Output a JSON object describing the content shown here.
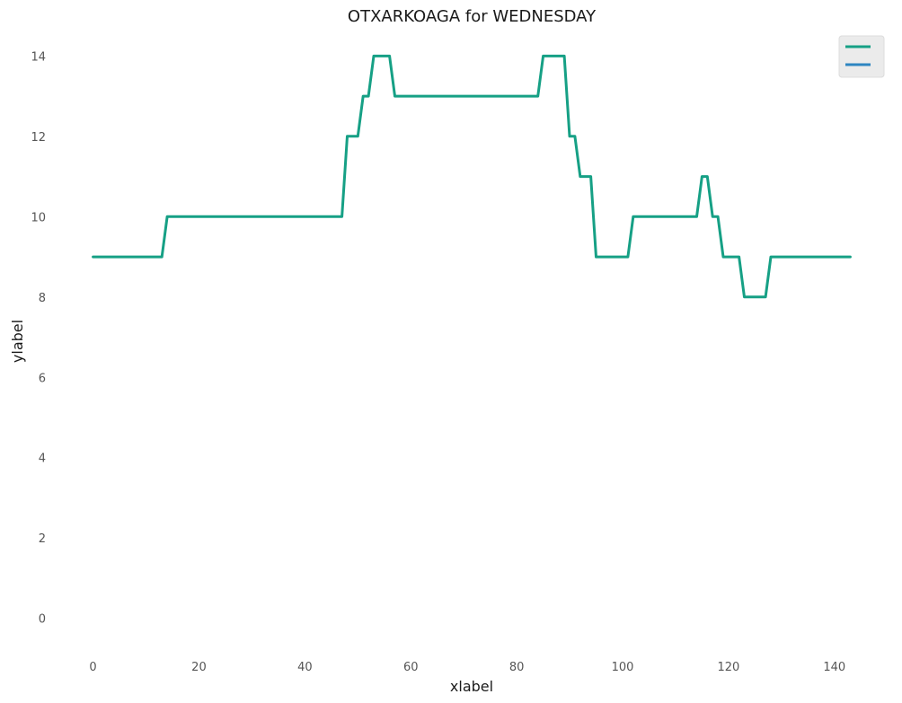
{
  "chart_data": {
    "type": "line",
    "title": "OTXARKOAGA for WEDNESDAY",
    "xlabel": "xlabel",
    "ylabel": "ylabel",
    "xlim": [
      -4,
      147
    ],
    "ylim": [
      -0.7,
      14.5
    ],
    "xticks": [
      0,
      20,
      40,
      60,
      80,
      100,
      120,
      140
    ],
    "yticks": [
      0,
      2,
      4,
      6,
      8,
      10,
      12,
      14
    ],
    "grid": false,
    "legend": {
      "placement": "top-right",
      "entries": [
        {
          "color": "#16a085"
        },
        {
          "color": "#2e86c1"
        }
      ]
    },
    "series": [
      {
        "color": "#16a085",
        "x": [
          0,
          13,
          14,
          47,
          48,
          50,
          51,
          52,
          53,
          56,
          57,
          84,
          85,
          89,
          90,
          91,
          92,
          94,
          95,
          101,
          102,
          114,
          115,
          116,
          117,
          118,
          119,
          122,
          123,
          127,
          128,
          143
        ],
        "y": [
          9,
          9,
          10,
          10,
          12,
          12,
          13,
          13,
          14,
          14,
          13,
          13,
          14,
          14,
          12,
          12,
          11,
          11,
          9,
          9,
          10,
          10,
          11,
          11,
          10,
          10,
          9,
          9,
          8,
          8,
          9,
          9
        ]
      }
    ]
  }
}
